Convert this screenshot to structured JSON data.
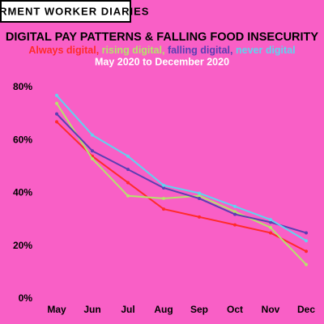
{
  "chart_data": {
    "type": "line",
    "header": "GARMENT WORKER DIARIES",
    "title": "DIGITAL PAY PATTERNS & FALLING FOOD INSECURITY",
    "legend_separator": ", ",
    "subtitle": "May 2020 to December 2020",
    "categories": [
      "May",
      "Jun",
      "Jul",
      "Aug",
      "Sep",
      "Oct",
      "Nov",
      "Dec"
    ],
    "series": [
      {
        "name": "Always digital",
        "color": "#ff2b2b",
        "values": [
          67,
          54,
          44,
          34,
          31,
          28,
          25,
          18
        ]
      },
      {
        "name": "rising digital",
        "color": "#b6e36b",
        "values": [
          74,
          53,
          39,
          38,
          39,
          33,
          27,
          13
        ]
      },
      {
        "name": "falling digital",
        "color": "#5b3eb2",
        "values": [
          70,
          56,
          49,
          42,
          38,
          32,
          29,
          25
        ]
      },
      {
        "name": "never digital",
        "color": "#5fd4f0",
        "values": [
          77,
          62,
          54,
          43,
          40,
          35,
          30,
          22
        ]
      }
    ],
    "ylim": [
      0,
      80
    ],
    "yticks": [
      {
        "value": 0,
        "label": "0%"
      },
      {
        "value": 20,
        "label": "20%"
      },
      {
        "value": 40,
        "label": "40%"
      },
      {
        "value": 60,
        "label": "60%"
      },
      {
        "value": 80,
        "label": "80%"
      }
    ],
    "grid": false
  }
}
